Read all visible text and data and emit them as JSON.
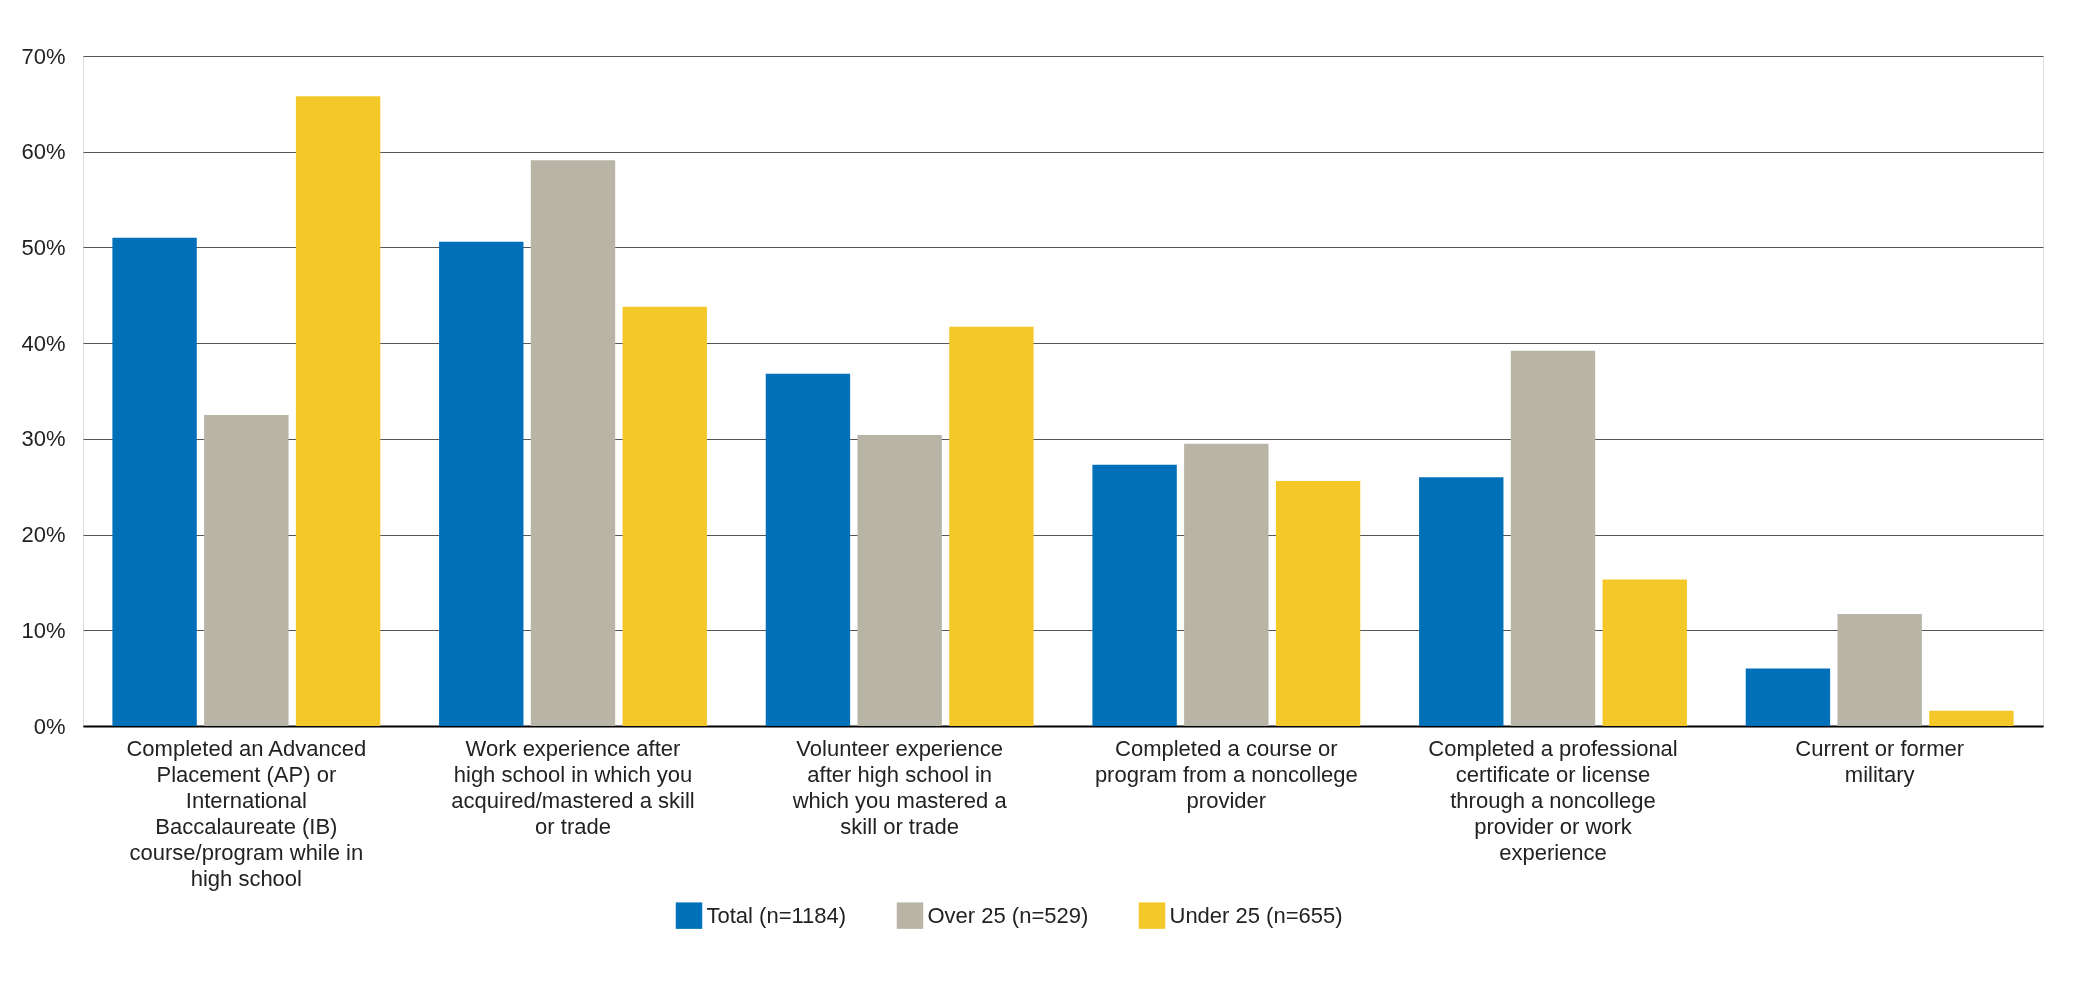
{
  "chart_data": {
    "type": "bar",
    "categories": [
      "Completed an Advanced Placement (AP) or International Baccalaureate (IB) course/program while in high school",
      "Work experience after high school in which you acquired/mastered a skill or trade",
      "Volunteer experience after high school in which you mastered a skill or trade",
      "Completed a course or program from a noncollege provider",
      "Completed a professional certificate or license through a noncollege provider or work experience",
      "Current or former military"
    ],
    "series": [
      {
        "name": "Total (n=1184)",
        "color": "#0070b8",
        "values": [
          51.0,
          50.6,
          36.8,
          27.3,
          26.0,
          6.0
        ]
      },
      {
        "name": "Over 25 (n=529)",
        "color": "#b8b5a6",
        "values": [
          32.5,
          59.1,
          30.4,
          29.5,
          39.2,
          11.7
        ]
      },
      {
        "name": "Under 25 (n=655)",
        "color": "#f4c828",
        "values": [
          65.8,
          43.8,
          41.7,
          25.6,
          15.3,
          1.6
        ]
      }
    ],
    "ylim": [
      0,
      70
    ],
    "yticks": [
      {
        "value": 0,
        "label": "0%"
      },
      {
        "value": 10,
        "label": "10%"
      },
      {
        "value": 20,
        "label": "20%"
      },
      {
        "value": 30,
        "label": "30%"
      },
      {
        "value": 40,
        "label": "40%"
      },
      {
        "value": 50,
        "label": "50%"
      },
      {
        "value": 60,
        "label": "60%"
      },
      {
        "value": 70,
        "label": "70%"
      }
    ],
    "grid": "y",
    "legend": "bottom"
  }
}
